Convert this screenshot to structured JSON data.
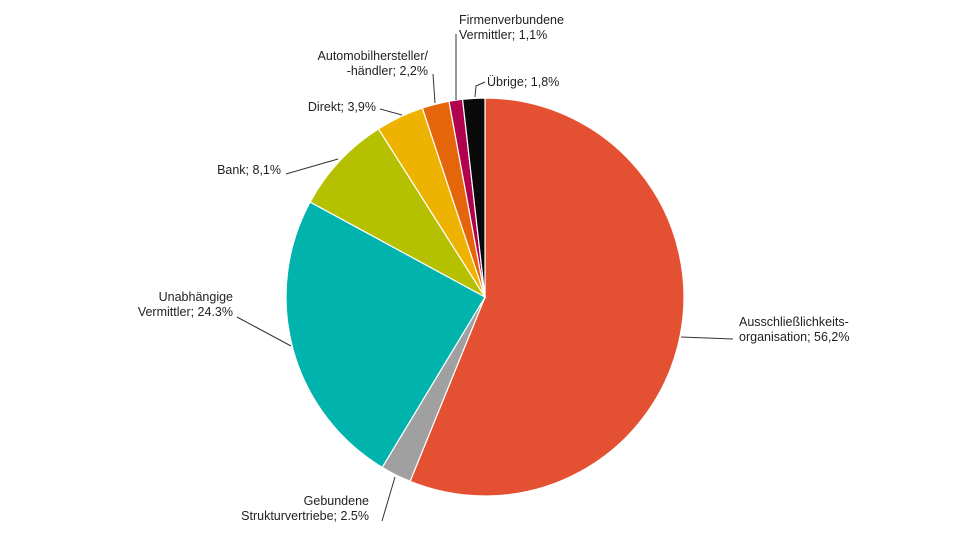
{
  "chart_data": {
    "type": "pie",
    "title": "",
    "start": "12 o'clock, clockwise",
    "slices": [
      {
        "lines": [
          "Ausschließlichkeits-",
          "organisation; 56,2%"
        ],
        "value": 56.2,
        "color": "#e45132"
      },
      {
        "lines": [
          "Gebundene",
          "Strukturvertriebe; 2.5%"
        ],
        "value": 2.5,
        "color": "#a0a0a0"
      },
      {
        "lines": [
          "Unabhängige",
          "Vermittler; 24.3%"
        ],
        "value": 24.3,
        "color": "#00b3ad"
      },
      {
        "lines": [
          "Bank; 8,1%"
        ],
        "value": 8.1,
        "color": "#b5c100"
      },
      {
        "lines": [
          "Direkt; 3,9%"
        ],
        "value": 3.9,
        "color": "#eeb200"
      },
      {
        "lines": [
          "Automobilhersteller/",
          "-händler; 2,2%"
        ],
        "value": 2.2,
        "color": "#e5660a"
      },
      {
        "lines": [
          "Firmenverbundene",
          "Vermittler; 1,1%"
        ],
        "value": 1.1,
        "color": "#b0004e"
      },
      {
        "lines": [
          "Übrige; 1,8%"
        ],
        "value": 1.8,
        "color": "#0a0a0a"
      }
    ]
  }
}
